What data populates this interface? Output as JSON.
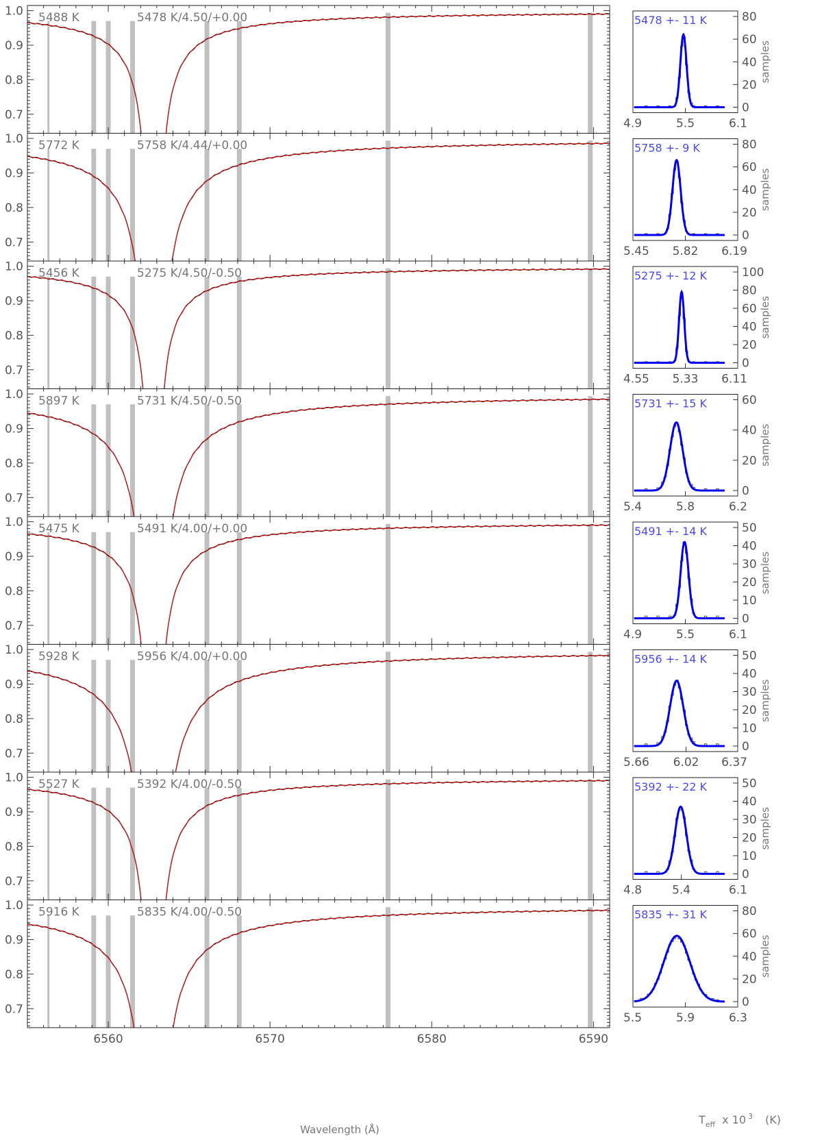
{
  "figure": {
    "x_axis_label": "Wavelength (Å)",
    "hist_x_label_main": "T",
    "hist_x_label_sub": "eff",
    "hist_x_label_tail": "x 10",
    "hist_x_label_exp": "3",
    "hist_x_label_units": "(K)",
    "hist_y_label": "samples"
  },
  "colors": {
    "observed": "#000000",
    "model": "#d42020",
    "mask": "#c0c0c0",
    "hist_fit": "#0000ee",
    "hist_step": "#555555",
    "hist_text": "#4a4ae8"
  },
  "chart_data": {
    "type": "line",
    "spectrum_xlim": [
      6555,
      6591
    ],
    "spectrum_ylim": [
      0.645,
      1.015
    ],
    "spectrum_xticks": [
      6560,
      6570,
      6580,
      6590
    ],
    "spectrum_yticks": [
      "0.7",
      "0.8",
      "0.9",
      "1.0"
    ],
    "mask_wavelengths": [
      6556.3,
      6559.1,
      6560.0,
      6561.5,
      6566.1,
      6568.1,
      6577.3,
      6589.8
    ],
    "panels": [
      {
        "ann_left": "5488 K",
        "ann_right": "5478 K/4.50/+0.00",
        "continuum_at_6555": 0.965,
        "hist": {
          "label": "5478 +- 11 K",
          "xticks": [
            "4.9",
            "5.5",
            "6.1"
          ],
          "xlim": [
            4.9,
            6.1
          ],
          "yticks": [
            "0",
            "20",
            "40",
            "60",
            "80"
          ],
          "ylim": [
            0,
            80
          ],
          "center": 5.478,
          "sigma": 0.011,
          "peak": 64
        }
      },
      {
        "ann_left": "5772 K",
        "ann_right": "5758 K/4.44/+0.00",
        "continuum_at_6555": 0.948,
        "hist": {
          "label": "5758 +- 9 K",
          "xticks": [
            "5.45",
            "5.82",
            "6.19"
          ],
          "xlim": [
            5.45,
            6.19
          ],
          "yticks": [
            "0",
            "20",
            "40",
            "60",
            "80"
          ],
          "ylim": [
            0,
            80
          ],
          "center": 5.758,
          "sigma": 0.009,
          "peak": 66
        }
      },
      {
        "ann_left": "5456 K",
        "ann_right": "5275 K/4.50/-0.50",
        "continuum_at_6555": 0.97,
        "hist": {
          "label": "5275 +- 12 K",
          "xticks": [
            "4.55",
            "5.33",
            "6.11"
          ],
          "xlim": [
            4.55,
            6.11
          ],
          "yticks": [
            "0",
            "20",
            "40",
            "60",
            "80",
            "100"
          ],
          "ylim": [
            0,
            100
          ],
          "center": 5.275,
          "sigma": 0.012,
          "peak": 78
        }
      },
      {
        "ann_left": "5897 K",
        "ann_right": "5731 K/4.50/-0.50",
        "continuum_at_6555": 0.945,
        "hist": {
          "label": "5731 +- 15 K",
          "xticks": [
            "5.4",
            "5.8",
            "6.2"
          ],
          "xlim": [
            5.4,
            6.2
          ],
          "yticks": [
            "0",
            "20",
            "40",
            "60"
          ],
          "ylim": [
            0,
            60
          ],
          "center": 5.731,
          "sigma": 0.015,
          "peak": 45
        }
      },
      {
        "ann_left": "5475 K",
        "ann_right": "5491 K/4.00/+0.00",
        "continuum_at_6555": 0.965,
        "hist": {
          "label": "5491 +- 14 K",
          "xticks": [
            "4.9",
            "5.5",
            "6.1"
          ],
          "xlim": [
            4.9,
            6.1
          ],
          "yticks": [
            "0",
            "10",
            "20",
            "30",
            "40",
            "50"
          ],
          "ylim": [
            0,
            50
          ],
          "center": 5.491,
          "sigma": 0.014,
          "peak": 42
        }
      },
      {
        "ann_left": "5928 K",
        "ann_right": "5956 K/4.00/+0.00",
        "continuum_at_6555": 0.938,
        "hist": {
          "label": "5956 +- 14 K",
          "xticks": [
            "5.66",
            "6.02",
            "6.37"
          ],
          "xlim": [
            5.66,
            6.37
          ],
          "yticks": [
            "0",
            "10",
            "20",
            "30",
            "40",
            "50"
          ],
          "ylim": [
            0,
            50
          ],
          "center": 5.956,
          "sigma": 0.014,
          "peak": 36
        }
      },
      {
        "ann_left": "5527 K",
        "ann_right": "5392 K/4.00/-0.50",
        "continuum_at_6555": 0.965,
        "hist": {
          "label": "5392 +- 22 K",
          "xticks": [
            "4.8",
            "5.4",
            "6.1"
          ],
          "xlim": [
            4.8,
            6.1
          ],
          "yticks": [
            "0",
            "10",
            "20",
            "30",
            "40",
            "50"
          ],
          "ylim": [
            0,
            50
          ],
          "center": 5.392,
          "sigma": 0.022,
          "peak": 37
        }
      },
      {
        "ann_left": "5916 K",
        "ann_right": "5835 K/4.00/-0.50",
        "continuum_at_6555": 0.945,
        "hist": {
          "label": "5835 +- 31 K",
          "xticks": [
            "5.5",
            "5.9",
            "6.3"
          ],
          "xlim": [
            5.5,
            6.3
          ],
          "yticks": [
            "0",
            "20",
            "40",
            "60",
            "80"
          ],
          "ylim": [
            0,
            80
          ],
          "center": 5.835,
          "sigma": 0.031,
          "peak": 58
        }
      }
    ]
  }
}
